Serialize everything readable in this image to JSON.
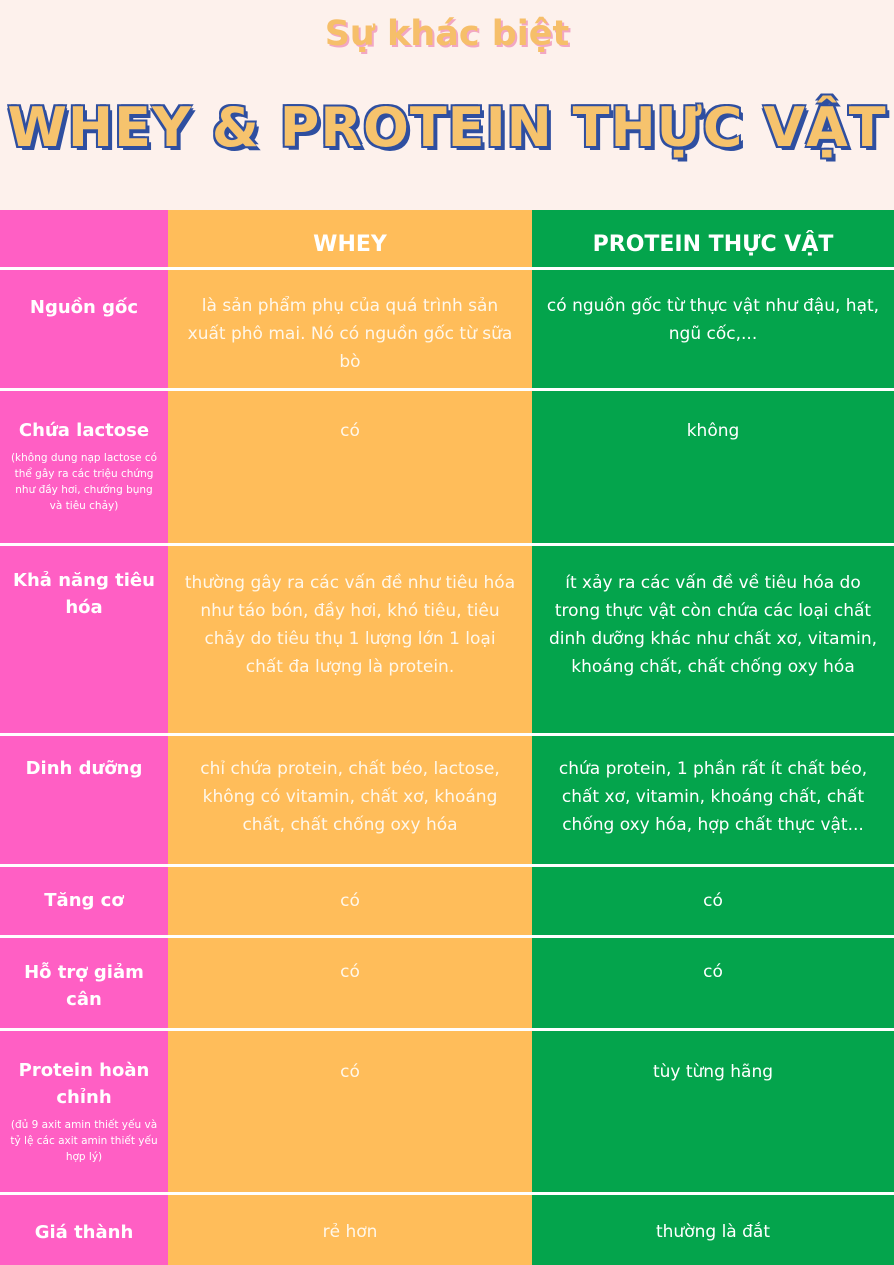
{
  "header": {
    "subtitle": "Sự khác biệt",
    "title": "WHEY & PROTEIN THỰC VẬT"
  },
  "columns": {
    "whey": "WHEY",
    "plant": "PROTEIN THỰC VẬT"
  },
  "rows": [
    {
      "label": "Nguồn gốc",
      "note": "",
      "whey": "là sản phẩm phụ của quá trình sản xuất phô mai. Nó có nguồn gốc từ sữa bò",
      "plant": "có nguồn gốc từ thực vật như đậu, hạt, ngũ cốc,..."
    },
    {
      "label": "Chứa lactose",
      "note": "(không dung nạp lactose có thể gây ra các triệu chứng như đầy hơi, chướng bụng và tiêu chảy)",
      "whey": "có",
      "plant": "không"
    },
    {
      "label": "Khả năng tiêu hóa",
      "note": "",
      "whey": "thường gây ra các vấn đề như tiêu hóa như táo bón, đầy hơi, khó tiêu, tiêu chảy do tiêu thụ 1 lượng lớn 1 loại chất đa lượng là protein.",
      "plant": "ít xảy ra các vấn đề về tiêu hóa do trong thực vật còn chứa các loại chất dinh dưỡng khác như chất xơ, vitamin, khoáng chất, chất chống oxy hóa"
    },
    {
      "label": "Dinh dưỡng",
      "note": "",
      "whey": "chỉ chứa protein, chất béo, lactose, không có vitamin, chất xơ, khoáng chất, chất chống oxy hóa",
      "plant": "chứa protein, 1 phần rất ít chất béo, chất xơ, vitamin, khoáng chất, chất chống oxy hóa, hợp chất thực vật..."
    },
    {
      "label": "Tăng cơ",
      "note": "",
      "whey": "có",
      "plant": "có"
    },
    {
      "label": "Hỗ trợ giảm cân",
      "note": "",
      "whey": "có",
      "plant": "có"
    },
    {
      "label": "Protein hoàn chỉnh",
      "note": "(đủ 9 axit amin thiết yếu và tỷ lệ các axit amin thiết yếu hợp lý)",
      "whey": "có",
      "plant": "tùy từng hãng"
    },
    {
      "label": "Giá thành",
      "note": "",
      "whey": "rẻ hơn",
      "plant": "thường là đắt"
    }
  ]
}
